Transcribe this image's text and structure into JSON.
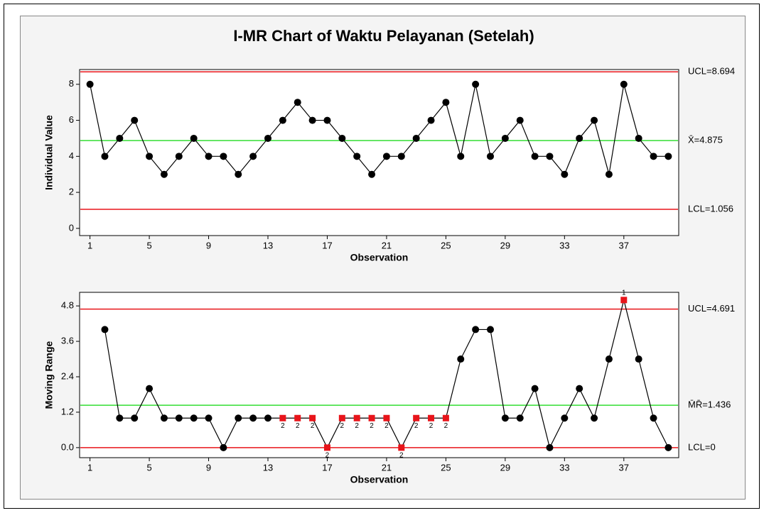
{
  "title": "I-MR Chart of Waktu Pelayanan (Setelah)",
  "chart_data": [
    {
      "type": "line",
      "ylabel": "Individual Value",
      "xlabel": "Observation",
      "x": [
        1,
        2,
        3,
        4,
        5,
        6,
        7,
        8,
        9,
        10,
        11,
        12,
        13,
        14,
        15,
        16,
        17,
        18,
        19,
        20,
        21,
        22,
        23,
        24,
        25,
        26,
        27,
        28,
        29,
        30,
        31,
        32,
        33,
        34,
        35,
        36,
        37,
        38,
        39,
        40
      ],
      "xlim": [
        0.3,
        40.7
      ],
      "xticks": [
        1,
        5,
        9,
        13,
        17,
        21,
        25,
        29,
        33,
        37
      ],
      "ylim": [
        -0.4,
        8.82
      ],
      "yticks": [
        0,
        2,
        4,
        6,
        8
      ],
      "series": [
        {
          "color": "#000000",
          "values": [
            8,
            4,
            5,
            6,
            4,
            3,
            4,
            5,
            4,
            4,
            3,
            4,
            5,
            6,
            7,
            6,
            6,
            5,
            4,
            3,
            4,
            4,
            5,
            6,
            7,
            4,
            8,
            4,
            5,
            6,
            4,
            4,
            3,
            5,
            6,
            3,
            8,
            5,
            4,
            4
          ]
        }
      ],
      "control_lines": [
        {
          "label": "UCL=8.694",
          "value": 8.694,
          "color": "#e8141a"
        },
        {
          "label": "X̄=4.875",
          "value": 4.875,
          "color": "#33dd33"
        },
        {
          "label": "LCL=1.056",
          "value": 1.056,
          "color": "#e8141a"
        }
      ]
    },
    {
      "type": "line",
      "ylabel": "Moving Range",
      "xlabel": "Observation",
      "x": [
        1,
        2,
        3,
        4,
        5,
        6,
        7,
        8,
        9,
        10,
        11,
        12,
        13,
        14,
        15,
        16,
        17,
        18,
        19,
        20,
        21,
        22,
        23,
        24,
        25,
        26,
        27,
        28,
        29,
        30,
        31,
        32,
        33,
        34,
        35,
        36,
        37,
        38,
        39,
        40
      ],
      "xlim": [
        0.3,
        40.7
      ],
      "xticks": [
        1,
        5,
        9,
        13,
        17,
        21,
        25,
        29,
        33,
        37
      ],
      "ylim": [
        -0.34,
        5.26
      ],
      "yticks": [
        {
          "value": 0,
          "label": "0.0"
        },
        1.2,
        2.4,
        3.6,
        4.8
      ],
      "series": [
        {
          "color": "#000000",
          "flag_color": "#e8141a",
          "values": [
            null,
            4,
            1,
            1,
            2,
            1,
            1,
            1,
            1,
            0,
            1,
            1,
            1,
            1,
            1,
            1,
            0,
            1,
            1,
            1,
            1,
            0,
            1,
            1,
            1,
            3,
            4,
            4,
            1,
            1,
            2,
            0,
            1,
            2,
            1,
            3,
            5,
            3,
            1,
            0
          ],
          "test_labels": [
            null,
            null,
            null,
            null,
            null,
            null,
            null,
            null,
            null,
            null,
            null,
            null,
            null,
            "2",
            "2",
            "2",
            "2",
            "2",
            "2",
            "2",
            "2",
            "2",
            "2",
            "2",
            "2",
            null,
            null,
            null,
            null,
            null,
            null,
            null,
            null,
            null,
            null,
            null,
            "1",
            null,
            null,
            null
          ]
        }
      ],
      "control_lines": [
        {
          "label": "UCL=4.691",
          "value": 4.691,
          "color": "#e8141a"
        },
        {
          "label": "M̄R̄=1.436",
          "value": 1.436,
          "color": "#33dd33"
        },
        {
          "label": "LCL=0",
          "value": 0,
          "color": "#e8141a"
        }
      ]
    }
  ]
}
